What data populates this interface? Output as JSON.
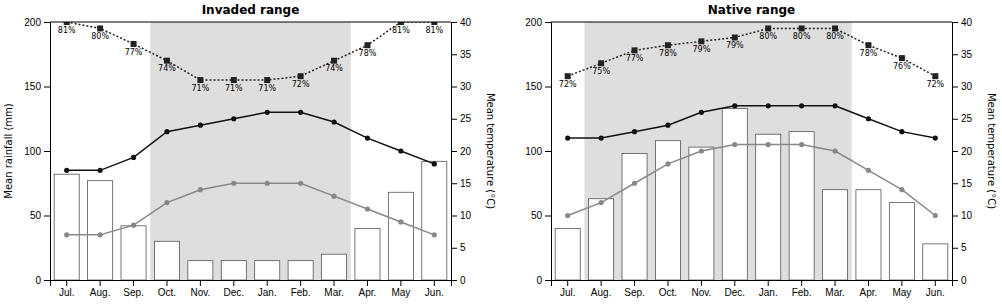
{
  "chart_data": [
    {
      "type": "bar",
      "title": "Invaded range",
      "categories": [
        "Jul.",
        "Aug.",
        "Sep.",
        "Oct.",
        "Nov.",
        "Dec.",
        "Jan.",
        "Feb.",
        "Mar.",
        "Apr.",
        "May",
        "Jun."
      ],
      "ylabel": "Mean rainfall (mm)",
      "y2label": "Mean temperature (°C)",
      "ylim": [
        0,
        200
      ],
      "yticks": [
        0,
        50,
        100,
        150,
        200
      ],
      "y2lim": [
        0,
        40
      ],
      "y2ticks": [
        0,
        5,
        10,
        15,
        20,
        25,
        30,
        35,
        40
      ],
      "shade": {
        "from": "Oct.",
        "to": "Mar.",
        "color": "#dedede"
      },
      "series": [
        {
          "type": "bar",
          "color": "#ffffff",
          "values": [
            82,
            77,
            42,
            30,
            15,
            15,
            15,
            15,
            20,
            40,
            68,
            92
          ]
        },
        {
          "type": "line",
          "axis": "y2",
          "color": "#111111",
          "marker": "circle",
          "values": [
            17.0,
            17.0,
            19.0,
            23.0,
            24.0,
            25.0,
            26.0,
            26.0,
            24.5,
            22.0,
            20.0,
            18.0
          ]
        },
        {
          "type": "line",
          "axis": "y2",
          "color": "#888888",
          "marker": "circle",
          "values": [
            7.0,
            7.0,
            8.5,
            12.0,
            14.0,
            15.0,
            15.0,
            15.0,
            13.0,
            11.0,
            9.0,
            7.0
          ]
        },
        {
          "type": "line",
          "color": "#222222",
          "marker": "square",
          "line_style": "dotted",
          "values": [
            200,
            195,
            183,
            170,
            155,
            155,
            155,
            158,
            170,
            182,
            200,
            200
          ],
          "humidity_labels": [
            "81%",
            "80%",
            "77%",
            "74%",
            "71%",
            "71%",
            "71%",
            "72%",
            "74%",
            "78%",
            "81%",
            "81%"
          ]
        }
      ]
    },
    {
      "type": "bar",
      "title": "Native range",
      "categories": [
        "Jul.",
        "Aug.",
        "Sep.",
        "Oct.",
        "Nov.",
        "Dec.",
        "Jan.",
        "Feb.",
        "Mar.",
        "Apr.",
        "May",
        "Jun."
      ],
      "y2label": "Mean temperature (°C)",
      "ylim": [
        0,
        200
      ],
      "yticks": [
        0,
        50,
        100,
        150,
        200
      ],
      "y2lim": [
        0,
        40
      ],
      "y2ticks": [
        0,
        5,
        10,
        15,
        20,
        25,
        30,
        35,
        40
      ],
      "shade": {
        "from": "Aug.",
        "to": "Mar.",
        "color": "#dedede"
      },
      "series": [
        {
          "type": "bar",
          "color": "#ffffff",
          "values": [
            40,
            63,
            98,
            108,
            103,
            133,
            113,
            115,
            70,
            70,
            60,
            28
          ]
        },
        {
          "type": "line",
          "axis": "y2",
          "color": "#111111",
          "marker": "circle",
          "values": [
            22.0,
            22.0,
            23.0,
            24.0,
            26.0,
            27.0,
            27.0,
            27.0,
            27.0,
            25.0,
            23.0,
            22.0
          ]
        },
        {
          "type": "line",
          "axis": "y2",
          "color": "#888888",
          "marker": "circle",
          "values": [
            10.0,
            12.0,
            15.0,
            18.0,
            20.0,
            21.0,
            21.0,
            21.0,
            20.0,
            17.0,
            14.0,
            10.0
          ]
        },
        {
          "type": "line",
          "color": "#222222",
          "marker": "square",
          "line_style": "dotted",
          "values": [
            158,
            168,
            178,
            182,
            185,
            188,
            195,
            195,
            195,
            182,
            172,
            158
          ],
          "humidity_labels": [
            "72%",
            "75%",
            "77%",
            "78%",
            "79%",
            "79%",
            "80%",
            "80%",
            "80%",
            "78%",
            "76%",
            "72%"
          ]
        }
      ]
    }
  ]
}
